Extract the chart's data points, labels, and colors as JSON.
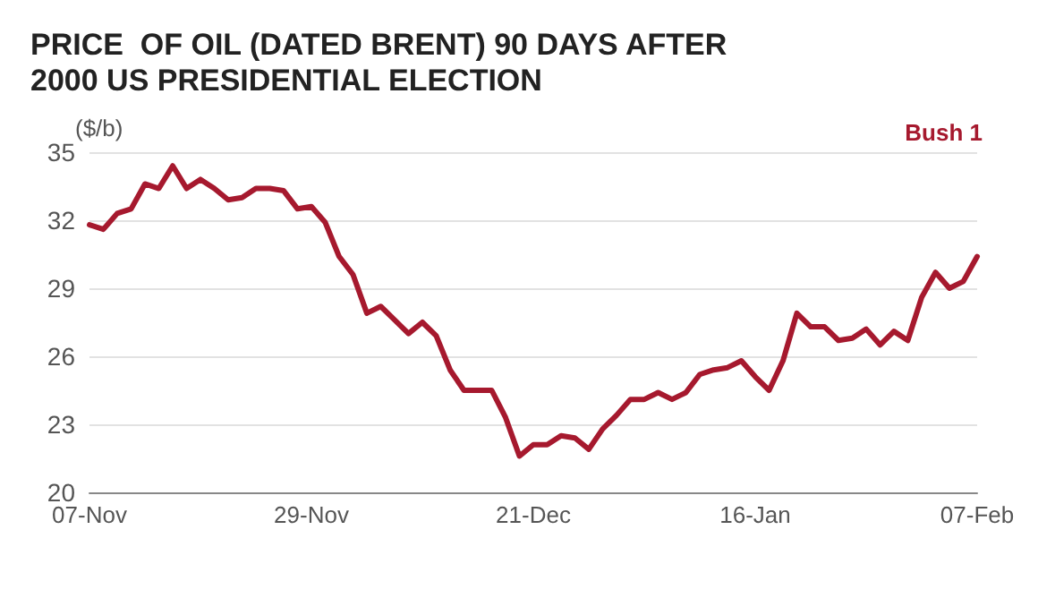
{
  "chart_data": {
    "type": "line",
    "title": "PRICE  OF OIL (DATED BRENT) 90 DAYS AFTER 2000 US PRESIDENTIAL ELECTION",
    "ylabel": "($/b)",
    "categories": [
      "07-Nov",
      null,
      null,
      null,
      null,
      null,
      null,
      null,
      null,
      null,
      null,
      null,
      null,
      null,
      null,
      null,
      "29-Nov",
      null,
      null,
      null,
      null,
      null,
      null,
      null,
      null,
      null,
      null,
      null,
      null,
      null,
      null,
      null,
      "21-Dec",
      null,
      null,
      null,
      null,
      null,
      null,
      null,
      null,
      null,
      null,
      null,
      null,
      null,
      null,
      null,
      "16-Jan",
      null,
      null,
      null,
      null,
      null,
      null,
      null,
      null,
      null,
      null,
      null,
      null,
      null,
      null,
      null,
      "07-Feb"
    ],
    "series": [
      {
        "name": "Bush 1",
        "color": "#a6192e",
        "values": [
          31.8,
          31.6,
          32.3,
          32.5,
          33.6,
          33.4,
          34.4,
          33.4,
          33.8,
          33.4,
          32.9,
          33.0,
          33.4,
          33.4,
          33.3,
          32.5,
          32.6,
          31.9,
          30.4,
          29.6,
          27.9,
          28.2,
          27.6,
          27.0,
          27.5,
          26.9,
          25.4,
          24.5,
          24.5,
          24.5,
          23.3,
          21.6,
          22.1,
          22.1,
          22.5,
          22.4,
          21.9,
          22.8,
          23.4,
          24.1,
          24.1,
          24.4,
          24.1,
          24.4,
          25.2,
          25.4,
          25.5,
          25.8,
          25.1,
          24.5,
          25.8,
          27.9,
          27.3,
          27.3,
          26.7,
          26.8,
          27.2,
          26.5,
          27.1,
          26.7,
          28.6,
          29.7,
          29.0,
          29.3,
          30.4
        ]
      }
    ],
    "ylim": [
      20,
      35
    ],
    "yticks": [
      20,
      23,
      26,
      29,
      32,
      35
    ],
    "grid": "y",
    "legend": "top right",
    "marker": "none",
    "line_style": "solid"
  }
}
